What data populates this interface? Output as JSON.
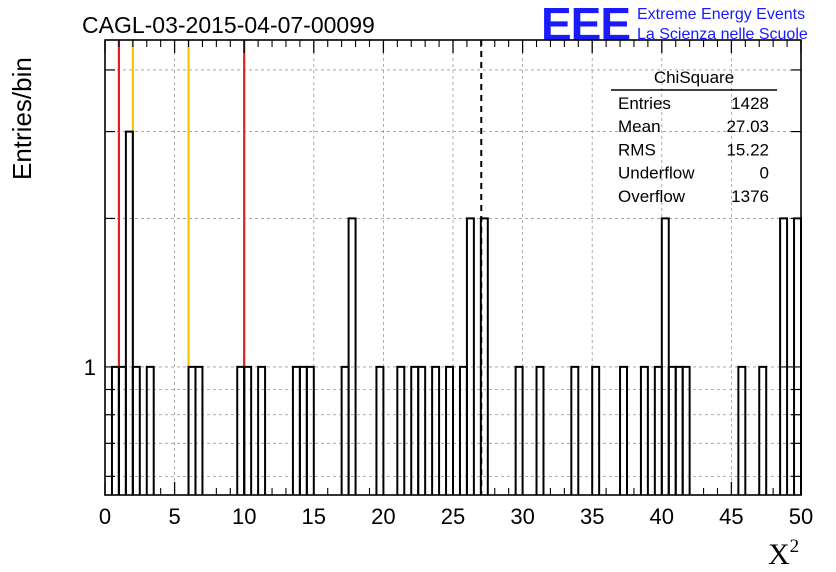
{
  "header": {
    "run_title": "CAGL-03-2015-04-07-00099",
    "logo_text": "EEE",
    "brand_line1": "Extreme Energy Events",
    "brand_line2": "La Scienza nelle Scuole"
  },
  "colors": {
    "brand_blue": "#1a1aff",
    "red_marker": "#dd2222",
    "yellow_marker": "#f5c400",
    "histogram": "#000000",
    "grid": "#999999"
  },
  "chart_data": {
    "type": "histogram",
    "xlabel": "X",
    "xlabel_superscript": "2",
    "ylabel": "Entries/bin",
    "xlim": [
      0,
      50
    ],
    "ylim": [
      0.55,
      4.6
    ],
    "y_scale": "log",
    "grid": true,
    "x_tick_values": [
      0,
      5,
      10,
      15,
      20,
      25,
      30,
      35,
      40,
      45,
      50
    ],
    "x_tick_labels": [
      "0",
      "5",
      "10",
      "15",
      "20",
      "25",
      "30",
      "35",
      "40",
      "45",
      "50"
    ],
    "y_tick_labels": [
      {
        "value": 1,
        "label": "1"
      }
    ],
    "bin_width": 0.5,
    "bins": [
      {
        "x0": 0.5,
        "count": 1
      },
      {
        "x0": 1.0,
        "count": 1
      },
      {
        "x0": 1.5,
        "count": 3
      },
      {
        "x0": 2.0,
        "count": 1
      },
      {
        "x0": 3.0,
        "count": 1
      },
      {
        "x0": 6.0,
        "count": 1
      },
      {
        "x0": 6.5,
        "count": 1
      },
      {
        "x0": 9.5,
        "count": 1
      },
      {
        "x0": 10.0,
        "count": 1
      },
      {
        "x0": 11.0,
        "count": 1
      },
      {
        "x0": 13.5,
        "count": 1
      },
      {
        "x0": 14.0,
        "count": 1
      },
      {
        "x0": 14.5,
        "count": 1
      },
      {
        "x0": 17.0,
        "count": 1
      },
      {
        "x0": 17.5,
        "count": 2
      },
      {
        "x0": 19.5,
        "count": 1
      },
      {
        "x0": 21.0,
        "count": 1
      },
      {
        "x0": 22.0,
        "count": 1
      },
      {
        "x0": 22.5,
        "count": 1
      },
      {
        "x0": 23.5,
        "count": 1
      },
      {
        "x0": 24.5,
        "count": 1
      },
      {
        "x0": 25.5,
        "count": 1
      },
      {
        "x0": 26.0,
        "count": 2
      },
      {
        "x0": 27.0,
        "count": 2
      },
      {
        "x0": 29.5,
        "count": 1
      },
      {
        "x0": 31.0,
        "count": 1
      },
      {
        "x0": 33.5,
        "count": 1
      },
      {
        "x0": 35.0,
        "count": 1
      },
      {
        "x0": 37.0,
        "count": 1
      },
      {
        "x0": 38.5,
        "count": 1
      },
      {
        "x0": 39.5,
        "count": 1
      },
      {
        "x0": 40.0,
        "count": 2
      },
      {
        "x0": 40.5,
        "count": 1
      },
      {
        "x0": 41.0,
        "count": 1
      },
      {
        "x0": 41.5,
        "count": 1
      },
      {
        "x0": 45.5,
        "count": 1
      },
      {
        "x0": 47.0,
        "count": 1
      },
      {
        "x0": 48.5,
        "count": 2
      },
      {
        "x0": 49.5,
        "count": 2
      }
    ],
    "reference_lines": [
      {
        "x": 1.0,
        "style": "solid",
        "color": "#dd2222"
      },
      {
        "x": 2.0,
        "style": "solid",
        "color": "#f5c400"
      },
      {
        "x": 6.0,
        "style": "solid",
        "color": "#f5c400"
      },
      {
        "x": 10.0,
        "style": "solid",
        "color": "#dd2222"
      },
      {
        "x": 27.03,
        "style": "dashed",
        "color": "#000000"
      }
    ],
    "stats_box": {
      "title": "ChiSquare",
      "rows": [
        {
          "label": "Entries",
          "value": "1428"
        },
        {
          "label": "Mean",
          "value": "27.03"
        },
        {
          "label": "RMS",
          "value": "15.22"
        },
        {
          "label": "Underflow",
          "value": "0"
        },
        {
          "label": "Overflow",
          "value": "1376"
        }
      ]
    }
  }
}
